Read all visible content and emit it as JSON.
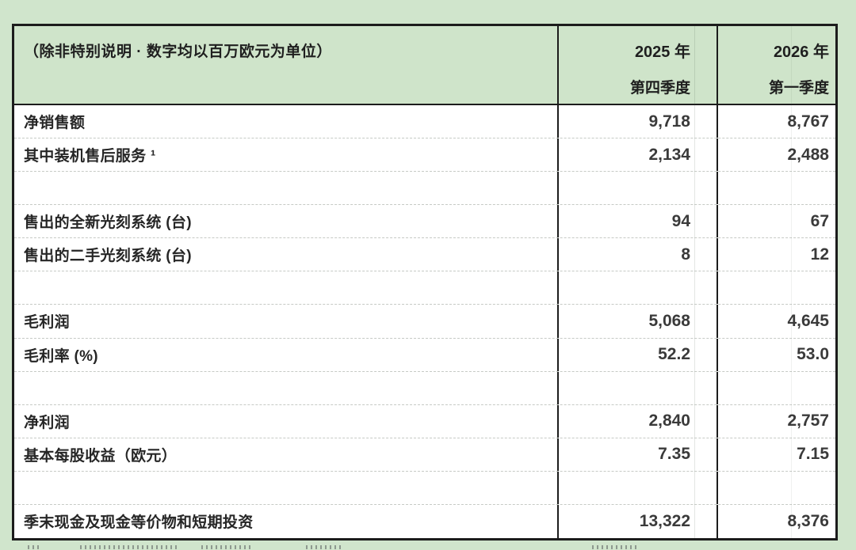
{
  "colors": {
    "page_bg": "#d0e5cc",
    "header_bg": "#cfe4ca",
    "cell_bg": "#ffffff",
    "border": "#1c1c1c",
    "dashed": "#c6cac5",
    "label_color": "#262626",
    "number_color": "#3a3a3a",
    "header_color": "#1f1f1f"
  },
  "table": {
    "header": {
      "note": "（除非特别说明 · 数字均以百万欧元为单位）",
      "col1_year": "2025 年",
      "col1_period": "第四季度",
      "col2_year": "2026 年",
      "col2_period": "第一季度"
    },
    "rows": [
      {
        "label": "净销售额",
        "q4_2025": "9,718",
        "q1_2026": "8,767"
      },
      {
        "label": "其中装机售后服务 ¹",
        "q4_2025": "2,134",
        "q1_2026": "2,488"
      },
      {
        "label": "",
        "q4_2025": "",
        "q1_2026": ""
      },
      {
        "label": "售出的全新光刻系统 (台)",
        "q4_2025": "94",
        "q1_2026": "67"
      },
      {
        "label": "售出的二手光刻系统 (台)",
        "q4_2025": "8",
        "q1_2026": "12"
      },
      {
        "label": "",
        "q4_2025": "",
        "q1_2026": ""
      },
      {
        "label": "毛利润",
        "q4_2025": "5,068",
        "q1_2026": "4,645"
      },
      {
        "label": "毛利率 (%)",
        "q4_2025": "52.2",
        "q1_2026": "53.0"
      },
      {
        "label": "",
        "q4_2025": "",
        "q1_2026": ""
      },
      {
        "label": "净利润",
        "q4_2025": "2,840",
        "q1_2026": "2,757"
      },
      {
        "label": "基本每股收益（欧元）",
        "q4_2025": "7.35",
        "q1_2026": "7.15"
      },
      {
        "label": "",
        "q4_2025": "",
        "q1_2026": ""
      },
      {
        "label": "季末现金及现金等价物和短期投资",
        "q4_2025": "13,322",
        "q1_2026": "8,376"
      }
    ]
  }
}
